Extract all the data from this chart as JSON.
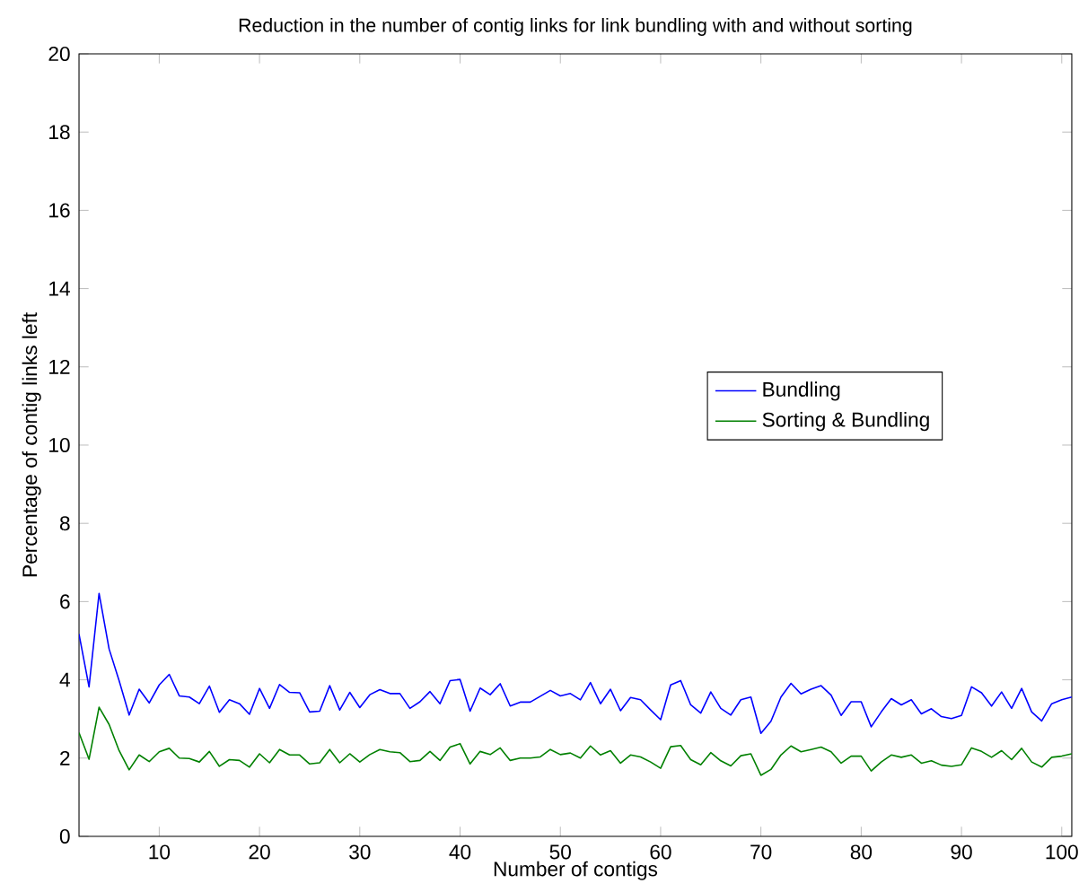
{
  "chart_data": {
    "type": "line",
    "title": "Reduction in the number of contig links for link bundling with and without sorting",
    "xlabel": "Number of contigs",
    "ylabel": "Percentage of contig links left",
    "x": [
      2,
      3,
      4,
      5,
      6,
      7,
      8,
      9,
      10,
      11,
      12,
      13,
      14,
      15,
      16,
      17,
      18,
      19,
      20,
      21,
      22,
      23,
      24,
      25,
      26,
      27,
      28,
      29,
      30,
      31,
      32,
      33,
      34,
      35,
      36,
      37,
      38,
      39,
      40,
      41,
      42,
      43,
      44,
      45,
      46,
      47,
      48,
      49,
      50,
      51,
      52,
      53,
      54,
      55,
      56,
      57,
      58,
      59,
      60,
      61,
      62,
      63,
      64,
      65,
      66,
      67,
      68,
      69,
      70,
      71,
      72,
      73,
      74,
      75,
      76,
      77,
      78,
      79,
      80,
      81,
      82,
      83,
      84,
      85,
      86,
      87,
      88,
      89,
      90,
      91,
      92,
      93,
      94,
      95,
      96,
      97,
      98,
      99,
      100,
      101
    ],
    "series": [
      {
        "name": "Bundling",
        "color": "#0000ff",
        "values": [
          5.17,
          3.82,
          6.21,
          4.79,
          3.98,
          3.1,
          3.76,
          3.41,
          3.87,
          4.14,
          3.59,
          3.56,
          3.39,
          3.84,
          3.17,
          3.49,
          3.39,
          3.12,
          3.78,
          3.27,
          3.88,
          3.68,
          3.67,
          3.18,
          3.2,
          3.85,
          3.23,
          3.68,
          3.29,
          3.62,
          3.75,
          3.65,
          3.65,
          3.27,
          3.44,
          3.7,
          3.39,
          3.98,
          4.01,
          3.2,
          3.79,
          3.62,
          3.9,
          3.33,
          3.43,
          3.43,
          3.58,
          3.73,
          3.59,
          3.65,
          3.49,
          3.93,
          3.39,
          3.76,
          3.21,
          3.55,
          3.49,
          3.23,
          2.98,
          3.87,
          3.98,
          3.36,
          3.15,
          3.69,
          3.27,
          3.1,
          3.49,
          3.56,
          2.63,
          2.94,
          3.56,
          3.91,
          3.64,
          3.76,
          3.85,
          3.61,
          3.09,
          3.44,
          3.44,
          2.8,
          3.18,
          3.52,
          3.36,
          3.49,
          3.13,
          3.26,
          3.06,
          3.01,
          3.09,
          3.82,
          3.67,
          3.33,
          3.69,
          3.27,
          3.78,
          3.18,
          2.95,
          3.39,
          3.49,
          3.56
        ]
      },
      {
        "name": "Sorting & Bundling",
        "color": "#008000",
        "values": [
          2.65,
          1.97,
          3.3,
          2.86,
          2.19,
          1.7,
          2.08,
          1.91,
          2.16,
          2.25,
          2.0,
          1.99,
          1.9,
          2.17,
          1.79,
          1.96,
          1.94,
          1.77,
          2.11,
          1.88,
          2.22,
          2.08,
          2.08,
          1.85,
          1.88,
          2.22,
          1.88,
          2.11,
          1.9,
          2.09,
          2.22,
          2.16,
          2.14,
          1.91,
          1.94,
          2.17,
          1.94,
          2.28,
          2.37,
          1.85,
          2.17,
          2.09,
          2.26,
          1.94,
          2.0,
          2.0,
          2.03,
          2.22,
          2.09,
          2.13,
          2.0,
          2.31,
          2.08,
          2.19,
          1.87,
          2.08,
          2.03,
          1.9,
          1.74,
          2.29,
          2.32,
          1.96,
          1.83,
          2.14,
          1.93,
          1.8,
          2.06,
          2.11,
          1.56,
          1.71,
          2.08,
          2.31,
          2.16,
          2.22,
          2.28,
          2.16,
          1.87,
          2.05,
          2.05,
          1.67,
          1.9,
          2.08,
          2.02,
          2.08,
          1.87,
          1.93,
          1.82,
          1.79,
          1.83,
          2.26,
          2.17,
          2.02,
          2.19,
          1.96,
          2.25,
          1.9,
          1.77,
          2.02,
          2.05,
          2.11
        ]
      }
    ],
    "xlim": [
      2,
      101
    ],
    "ylim": [
      0,
      20
    ],
    "xticks": [
      10,
      20,
      30,
      40,
      50,
      60,
      70,
      80,
      90,
      100
    ],
    "yticks": [
      0,
      2,
      4,
      6,
      8,
      10,
      12,
      14,
      16,
      18,
      20
    ],
    "grid": false,
    "legend": "right",
    "marker": "none",
    "line_style": "solid"
  }
}
